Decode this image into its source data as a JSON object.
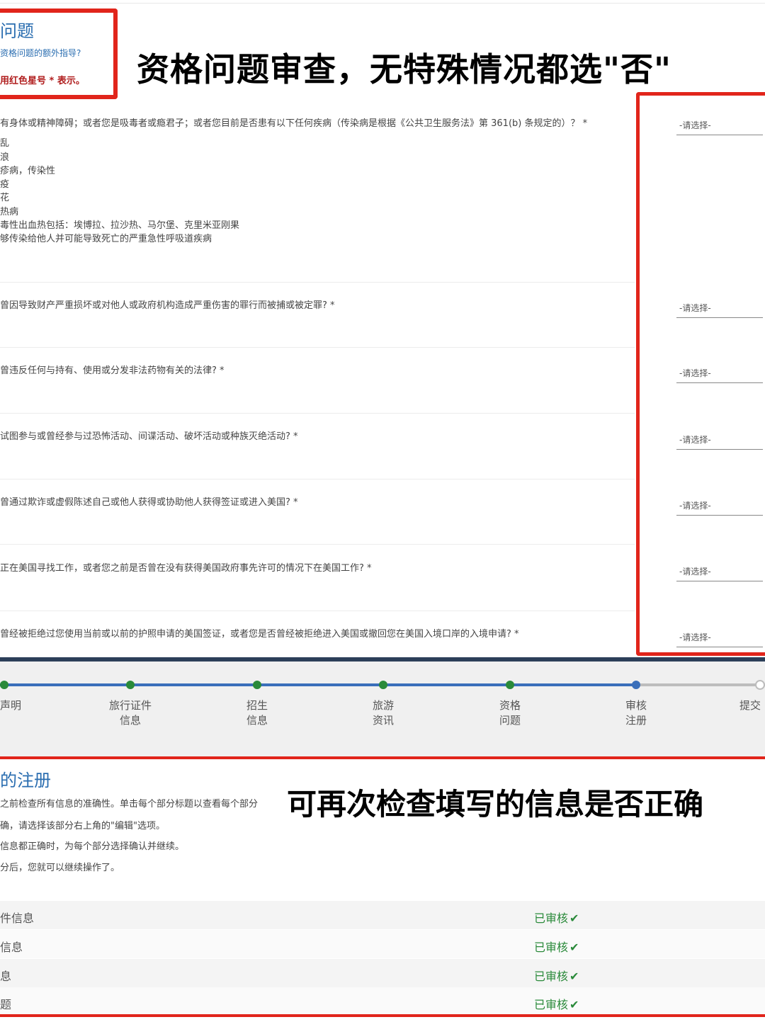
{
  "header": {
    "title": "问题",
    "subtitle": "资格问题的额外指导?",
    "required_note": "用红色星号 * 表示。"
  },
  "overlays": {
    "top_caption": "资格问题审查，无特殊情况都选\"否\"",
    "review_caption": "可再次检查填写的信息是否正确"
  },
  "questions": {
    "q1": {
      "text": "有身体或精神障碍；或者您是吸毒者或瘾君子；或者您目前是否患有以下任何疾病（传染病是根据《公共卫生服务法》第 361(b) 条规定的）？ *",
      "sub_items": [
        "乱",
        "浪",
        "疹病，传染性",
        "疫",
        "花",
        "热病",
        "毒性出血热包括：埃博拉、拉沙热、马尔堡、克里米亚刚果",
        "够传染给他人并可能导致死亡的严重急性呼吸道疾病"
      ]
    },
    "q2": "曾因导致财产严重损坏或对他人或政府机构造成严重伤害的罪行而被捕或被定罪? *",
    "q3": "曾违反任何与持有、使用或分发非法药物有关的法律? *",
    "q4": "试图参与或曾经参与过恐怖活动、间谍活动、破坏活动或种族灭绝活动? *",
    "q5": "曾通过欺诈或虚假陈述自己或他人获得或协助他人获得签证或进入美国? *",
    "q6": "正在美国寻找工作，或者您之前是否曾在没有获得美国政府事先许可的情况下在美国工作? *",
    "q7": "曾经被拒绝过您使用当前或以前的护照申请的美国签证，或者您是否曾经被拒绝进入美国或撤回您在美国入境口岸的入境申请? *"
  },
  "select_placeholder": "-请选择-",
  "progress": {
    "steps": [
      {
        "label": "声明",
        "state": "done"
      },
      {
        "label": "旅行证件信息",
        "line1": "旅行证件",
        "line2": "信息",
        "state": "done"
      },
      {
        "label": "招生信息",
        "line1": "招生",
        "line2": "信息",
        "state": "done"
      },
      {
        "label": "旅游资讯",
        "line1": "旅游",
        "line2": "资讯",
        "state": "done"
      },
      {
        "label": "资格问题",
        "line1": "资格",
        "line2": "问题",
        "state": "done"
      },
      {
        "label": "审核注册",
        "line1": "审核",
        "line2": "注册",
        "state": "current"
      },
      {
        "label": "提交",
        "state": "pending"
      }
    ]
  },
  "review": {
    "title": "的注册",
    "lines": [
      "之前检查所有信息的准确性。单击每个部分标题以查看每个部分",
      "确，请选择该部分右上角的\"编辑\"选项。",
      "信息都正确时，为每个部分选择确认并继续。",
      "分后，您就可以继续操作了。"
    ],
    "rows": [
      {
        "name": "件信息",
        "status": "已审核"
      },
      {
        "name": "信息",
        "status": "已审核"
      },
      {
        "name": "息",
        "status": "已审核"
      },
      {
        "name": "题",
        "status": "已审核"
      }
    ],
    "check_icon": "✔"
  },
  "colors": {
    "highlight_red": "#e1251b",
    "link_blue": "#2a6db0",
    "done_green": "#2a8a3a",
    "track_blue": "#3a6fba"
  }
}
